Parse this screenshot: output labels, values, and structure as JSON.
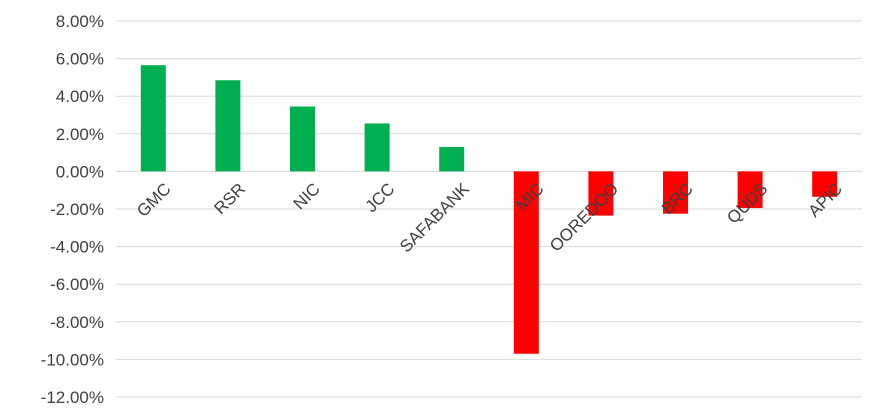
{
  "chart_data": {
    "type": "bar",
    "title": "",
    "xlabel": "",
    "ylabel": "",
    "ylim": [
      -12,
      8
    ],
    "y_ticks": [
      8,
      6,
      4,
      2,
      0,
      -2,
      -4,
      -6,
      -8,
      -10,
      -12
    ],
    "y_tick_labels": [
      "8.00%",
      "6.00%",
      "4.00%",
      "2.00%",
      "0.00%",
      "-2.00%",
      "-4.00%",
      "-6.00%",
      "-8.00%",
      "-10.00%",
      "-12.00%"
    ],
    "grid": true,
    "legend": "none",
    "categories": [
      "GMC",
      "RSR",
      "NIC",
      "JCC",
      "SAFABANK",
      "MIC",
      "OOREDOO",
      "BRC",
      "QUDS",
      "APIC"
    ],
    "values": [
      5.65,
      4.85,
      3.45,
      2.55,
      1.3,
      -9.7,
      -2.35,
      -2.25,
      -1.95,
      -1.35
    ],
    "colors": {
      "positive": "#00b050",
      "negative": "#ff0000"
    }
  }
}
